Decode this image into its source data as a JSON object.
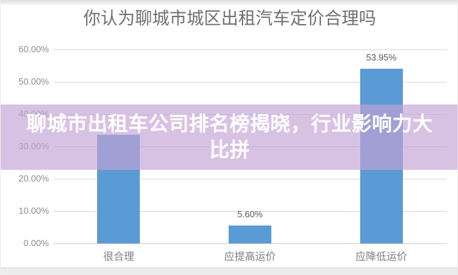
{
  "page": {
    "chart_title": "你认为聊城市城区出租汽车定价合理吗"
  },
  "banner": {
    "text": "聊城市出租车公司排名榜揭晓，行业影响力大比拼",
    "background": "rgba(196,162,212,0.66)",
    "text_color": "#ffffff"
  },
  "chart_data": {
    "type": "bar",
    "title": "你认为聊城市城区出租汽车定价合理吗",
    "categories": [
      "很合理",
      "应提高运价",
      "应降低运价"
    ],
    "values": [
      33.6,
      5.6,
      53.95
    ],
    "data_labels": [
      "",
      "5.60%",
      "53.95%"
    ],
    "xlabel": "",
    "ylabel": "",
    "ylim": [
      0,
      60
    ],
    "yticks": [
      "0.00%",
      "10.00%",
      "20.00%",
      "30.00%",
      "40.00%",
      "50.00%",
      "60.00%"
    ],
    "grid": true,
    "legend": false,
    "bar_color": "#5b9bd5"
  },
  "colors": {
    "title_text": "#6f6f6f",
    "axis_text": "#8c8c8c",
    "value_label_text": "#595959",
    "gridline": "#d9d9d9",
    "bar": "#5b9bd5",
    "banner_background": "rgba(196,162,212,0.66)",
    "window_band": "#ececec"
  }
}
